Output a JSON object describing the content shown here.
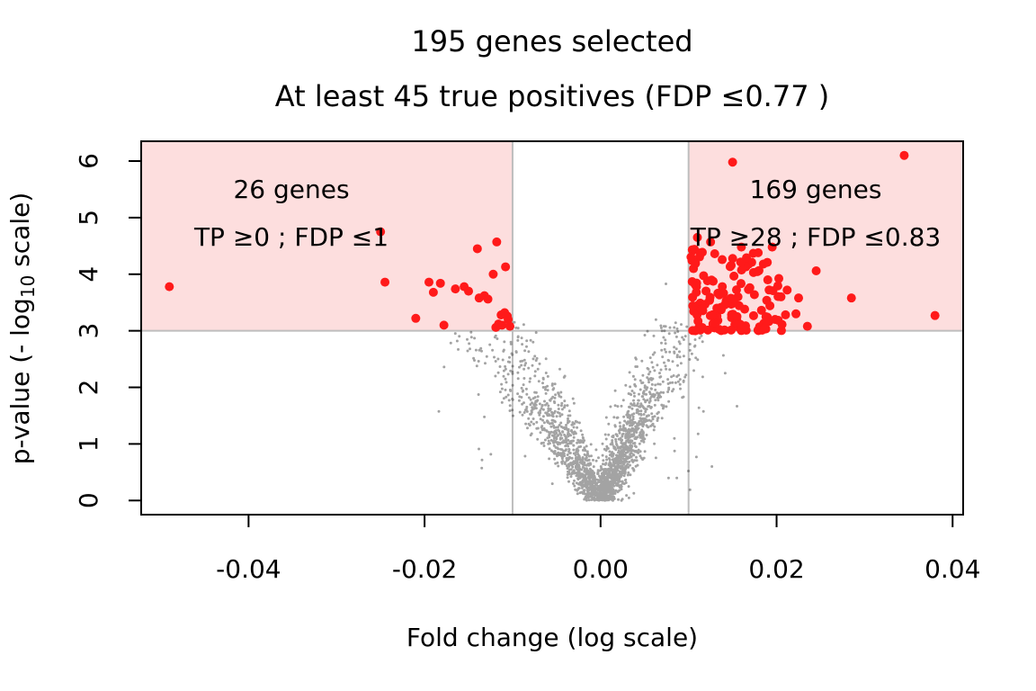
{
  "chart_data": {
    "type": "scatter",
    "title": "195 genes selected",
    "subtitle": "At least 45 true positives (FDP ≤0.77 )",
    "xlabel": "Fold change (log scale)",
    "ylabel": "p-value (- log",
    "ylabel_sub": "10",
    "ylabel_tail": " scale)",
    "xlim": [
      -0.0522,
      0.0412
    ],
    "ylim": [
      -0.25,
      6.35
    ],
    "x_ticks": [
      -0.04,
      -0.02,
      0.0,
      0.02,
      0.04
    ],
    "x_tick_labels": [
      "-0.04",
      "-0.02",
      "0.00",
      "0.02",
      "0.04"
    ],
    "y_ticks": [
      0,
      1,
      2,
      3,
      4,
      5,
      6
    ],
    "y_tick_labels": [
      "0",
      "1",
      "2",
      "3",
      "4",
      "5",
      "6"
    ],
    "thresholds": {
      "fold_change_low": -0.01,
      "fold_change_high": 0.01,
      "p_value": 3
    },
    "region_color": "#fddede",
    "selected_color": "#ff1a1a",
    "background_color": "#333333",
    "annotations": {
      "left": {
        "count": "26 genes",
        "stats": "TP ≥0 ; FDP ≤1"
      },
      "right": {
        "count": "169 genes",
        "stats": "TP ≥28 ;  FDP ≤0.83"
      }
    },
    "selected_points": [
      [
        -0.049,
        3.78
      ],
      [
        -0.025,
        4.75
      ],
      [
        -0.0245,
        3.86
      ],
      [
        -0.021,
        3.22
      ],
      [
        -0.0195,
        3.86
      ],
      [
        -0.019,
        3.68
      ],
      [
        -0.0182,
        3.84
      ],
      [
        -0.0178,
        3.1
      ],
      [
        -0.0165,
        3.74
      ],
      [
        -0.0155,
        3.78
      ],
      [
        -0.014,
        4.45
      ],
      [
        -0.0138,
        3.58
      ],
      [
        -0.0132,
        3.62
      ],
      [
        -0.0122,
        4.0
      ],
      [
        -0.0118,
        4.57
      ],
      [
        -0.0113,
        3.28
      ],
      [
        -0.0112,
        3.1
      ],
      [
        -0.0108,
        4.13
      ],
      [
        -0.0105,
        3.2
      ],
      [
        -0.0103,
        3.08
      ],
      [
        -0.0128,
        3.56
      ],
      [
        -0.015,
        3.7
      ],
      [
        -0.0109,
        3.32
      ],
      [
        -0.0119,
        3.06
      ],
      [
        -0.0116,
        3.12
      ],
      [
        -0.0106,
        3.26
      ],
      [
        0.015,
        5.98
      ],
      [
        0.0345,
        6.1
      ],
      [
        0.038,
        3.27
      ],
      [
        0.0285,
        3.58
      ],
      [
        0.0245,
        4.06
      ],
      [
        0.0235,
        3.08
      ],
      [
        0.0225,
        3.58
      ],
      [
        0.0222,
        3.3
      ],
      [
        0.0212,
        3.72
      ],
      [
        0.0205,
        3.6
      ],
      [
        0.0195,
        4.48
      ],
      [
        0.019,
        3.9
      ],
      [
        0.0185,
        4.18
      ],
      [
        0.016,
        4.48
      ],
      [
        0.0125,
        4.57
      ],
      [
        0.011,
        4.65
      ]
    ],
    "selected_points_note_count": "195",
    "axes_color": "#000000",
    "grid": false
  }
}
